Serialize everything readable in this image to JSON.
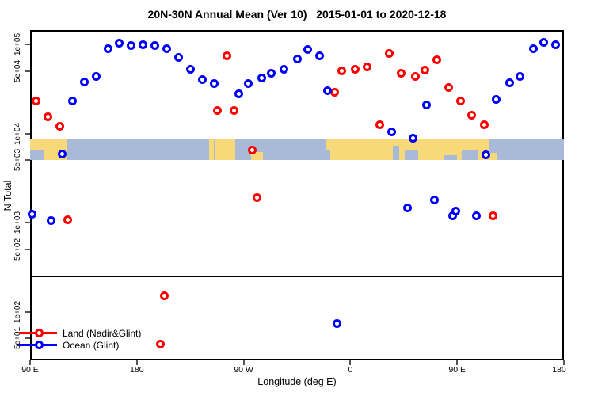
{
  "chart_data": {
    "type": "scatter",
    "title": "20N-30N Annual Mean (Ver 10)   2015-01-01 to 2020-12-18",
    "xlabel": "Longitude (deg E)",
    "ylabel": "N Total",
    "x_axis": {
      "note": "longitude unwrapped eastward, 90E to 180 around the globe",
      "range": [
        90,
        540
      ],
      "ticks": [
        {
          "lon": 90,
          "label": "90 E"
        },
        {
          "lon": 180,
          "label": "180"
        },
        {
          "lon": 270,
          "label": "90 W"
        },
        {
          "lon": 360,
          "label": "0"
        },
        {
          "lon": 450,
          "label": "90 E"
        },
        {
          "lon": 540,
          "label": "180"
        }
      ]
    },
    "y_axis": {
      "scale": "log",
      "range": [
        23,
        146000
      ],
      "ticks": [
        {
          "value": 100000,
          "label": "1e+05"
        },
        {
          "value": 50000,
          "label": "5e+04"
        },
        {
          "value": 10000,
          "label": "1e+04"
        },
        {
          "value": 5000,
          "label": "5e+03"
        },
        {
          "value": 1000,
          "label": "1e+03"
        },
        {
          "value": 500,
          "label": "5e+02"
        },
        {
          "value": 100,
          "label": "1e+02"
        },
        {
          "value": 50,
          "label": "5e+01"
        }
      ]
    },
    "reference_line": {
      "value": 250
    },
    "map_band": {
      "value_range": [
        5000,
        8600
      ],
      "ocean_color": "#A8BAD8",
      "land_color": "#F7D97A",
      "land_segments": [
        {
          "from": 90,
          "to": 121,
          "top": 0,
          "height": 1
        },
        {
          "from": 241,
          "to": 245,
          "top": 0,
          "height": 1
        },
        {
          "from": 246,
          "to": 263,
          "top": 0,
          "height": 1
        },
        {
          "from": 276,
          "to": 286,
          "top": 0.6,
          "height": 0.4
        },
        {
          "from": 339,
          "to": 343,
          "top": 0,
          "height": 0.5
        },
        {
          "from": 343,
          "to": 477,
          "top": 0,
          "height": 1
        },
        {
          "from": 477,
          "to": 483,
          "top": 0.65,
          "height": 0.35
        }
      ],
      "ocean_patches": [
        {
          "from": 90,
          "to": 102,
          "top": 0.5,
          "height": 0.5
        },
        {
          "from": 396,
          "to": 401,
          "top": 0.3,
          "height": 0.7
        },
        {
          "from": 406,
          "to": 417,
          "top": 0.55,
          "height": 0.45
        },
        {
          "from": 439,
          "to": 450,
          "top": 0.75,
          "height": 0.25
        },
        {
          "from": 454,
          "to": 468,
          "top": 0.5,
          "height": 0.5
        }
      ]
    },
    "series": [
      {
        "name": "Land (Nadir&Glint)",
        "color": "#FF0000",
        "points": [
          [
            95,
            23000
          ],
          [
            105,
            15500
          ],
          [
            115,
            12000
          ],
          [
            248,
            18000
          ],
          [
            256,
            75000
          ],
          [
            262,
            18000
          ],
          [
            277,
            6500
          ],
          [
            281,
            1900
          ],
          [
            347,
            29000
          ],
          [
            353,
            50000
          ],
          [
            364,
            52000
          ],
          [
            374,
            56000
          ],
          [
            385,
            12600
          ],
          [
            393,
            79000
          ],
          [
            403,
            47000
          ],
          [
            415,
            44000
          ],
          [
            423,
            51000
          ],
          [
            433,
            67000
          ],
          [
            443,
            33000
          ],
          [
            453,
            23000
          ],
          [
            462,
            16000
          ],
          [
            473,
            12500
          ],
          [
            122,
            1070
          ],
          [
            480,
            1200
          ],
          [
            203,
            150
          ],
          [
            200,
            43
          ]
        ]
      },
      {
        "name": "Ocean (Glint)",
        "color": "#0000FF",
        "points": [
          [
            126,
            23000
          ],
          [
            136,
            38000
          ],
          [
            146,
            44000
          ],
          [
            156,
            89000
          ],
          [
            165,
            104000
          ],
          [
            175,
            96000
          ],
          [
            185,
            100000
          ],
          [
            195,
            96000
          ],
          [
            205,
            90000
          ],
          [
            215,
            72000
          ],
          [
            225,
            53000
          ],
          [
            235,
            40000
          ],
          [
            245,
            36000
          ],
          [
            266,
            28000
          ],
          [
            274,
            36000
          ],
          [
            285,
            42000
          ],
          [
            293,
            47000
          ],
          [
            304,
            53000
          ],
          [
            315,
            68000
          ],
          [
            324,
            87000
          ],
          [
            334,
            74000
          ],
          [
            341,
            30000
          ],
          [
            395,
            10500
          ],
          [
            413,
            8900
          ],
          [
            424,
            21000
          ],
          [
            483,
            24000
          ],
          [
            494,
            37000
          ],
          [
            503,
            44000
          ],
          [
            514,
            89000
          ],
          [
            523,
            106000
          ],
          [
            533,
            98000
          ],
          [
            117,
            5900
          ],
          [
            474,
            5800
          ],
          [
            92,
            1250
          ],
          [
            108,
            1060
          ],
          [
            408,
            1450
          ],
          [
            431,
            1800
          ],
          [
            446,
            1200
          ],
          [
            449,
            1350
          ],
          [
            466,
            1190
          ],
          [
            349,
            73
          ]
        ]
      }
    ],
    "legend": {
      "position": "bottom-left"
    }
  }
}
